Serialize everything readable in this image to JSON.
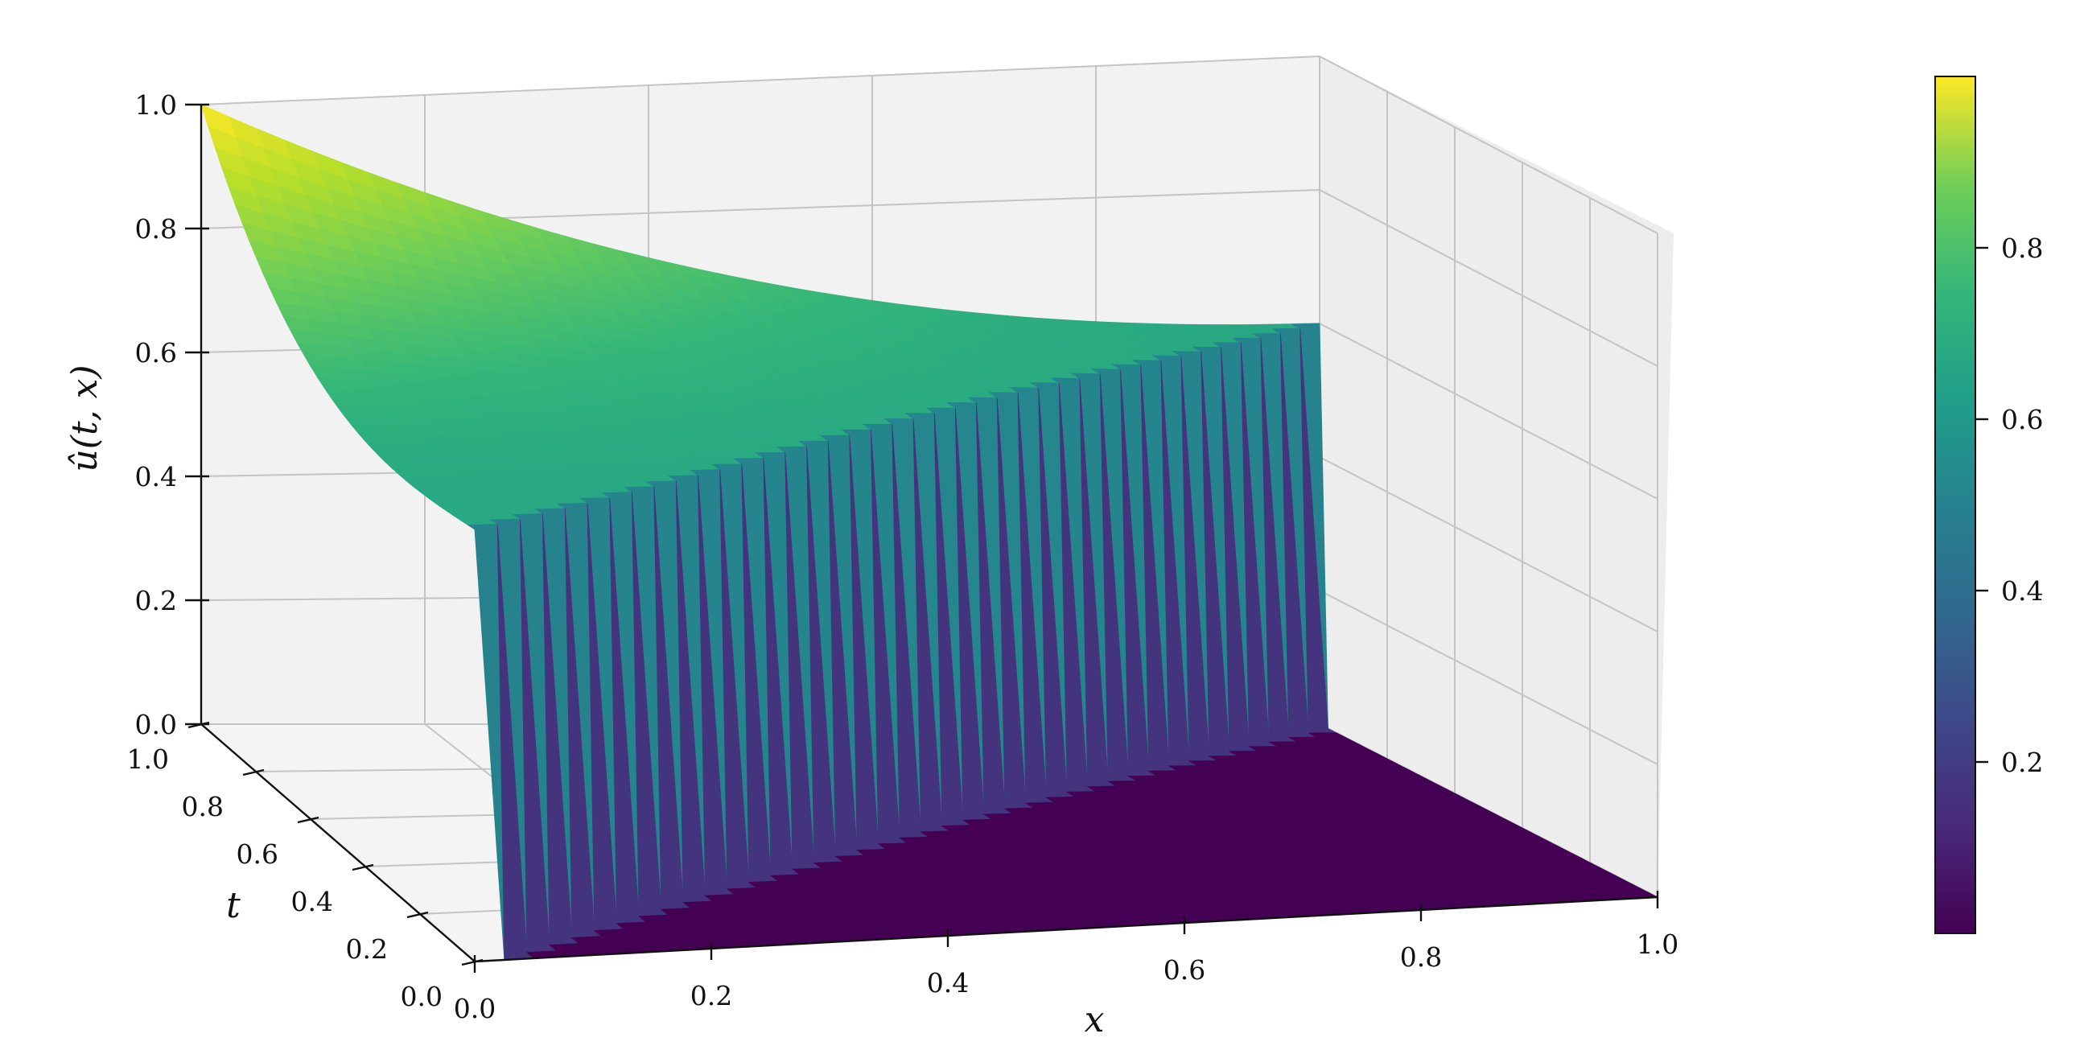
{
  "chart_data": {
    "type": "surface3d",
    "title": "",
    "xlabel": "x",
    "ylabel": "t",
    "zlabel": "û(t, x)",
    "xlim": [
      0.0,
      1.0
    ],
    "ylim": [
      0.0,
      1.0
    ],
    "zlim": [
      0.0,
      1.0
    ],
    "x_ticks": [
      "0.0",
      "0.2",
      "0.4",
      "0.6",
      "0.8",
      "1.0"
    ],
    "t_ticks": [
      "0.0",
      "0.2",
      "0.4",
      "0.6",
      "0.8",
      "1.0"
    ],
    "z_ticks": [
      "0.0",
      "0.2",
      "0.4",
      "0.6",
      "0.8",
      "1.0"
    ],
    "surface": {
      "description_of_values": "u = 1 at x=0,t=1 decaying to ~0.6 along a ridge; sharp front at x = t; u ≈ 0 for x > t",
      "front_line": "x = t",
      "samples": [
        {
          "t": 1.0,
          "x": 0.0,
          "u": 1.0
        },
        {
          "t": 1.0,
          "x": 0.2,
          "u": 0.82
        },
        {
          "t": 1.0,
          "x": 0.4,
          "u": 0.74
        },
        {
          "t": 1.0,
          "x": 0.6,
          "u": 0.68
        },
        {
          "t": 1.0,
          "x": 0.8,
          "u": 0.64
        },
        {
          "t": 1.0,
          "x": 1.0,
          "u": 0.6
        },
        {
          "t": 0.5,
          "x": 0.5,
          "u": 0.6
        },
        {
          "t": 0.1,
          "x": 0.1,
          "u": 0.55
        },
        {
          "t": 0.5,
          "x": 0.8,
          "u": 0.0
        }
      ]
    },
    "colormap": "viridis",
    "colorbar": {
      "ticks": [
        "0.2",
        "0.4",
        "0.6",
        "0.8"
      ],
      "range": [
        0.0,
        1.0
      ]
    },
    "grid": true
  }
}
